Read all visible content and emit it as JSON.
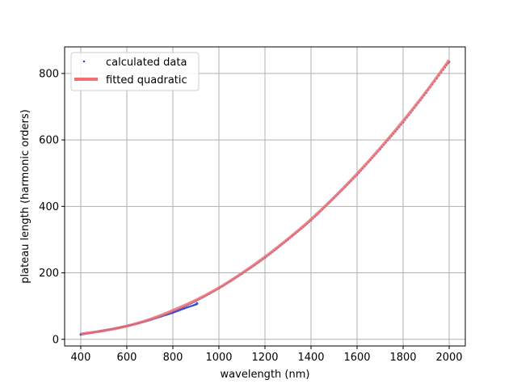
{
  "chart_data": {
    "type": "line",
    "title": "",
    "xlabel": "wavelength (nm)",
    "ylabel": "plateau length (harmonic orders)",
    "xlim": [
      330,
      2070
    ],
    "ylim": [
      -20,
      880
    ],
    "xticks": [
      400,
      600,
      800,
      1000,
      1200,
      1400,
      1600,
      1800,
      2000
    ],
    "yticks": [
      0,
      200,
      400,
      600,
      800
    ],
    "grid": true,
    "legend_position": "top-left",
    "series": [
      {
        "name": "calculated data",
        "style": "dots",
        "color": "#3b4fd0",
        "segments": [
          {
            "x": [
              400,
              450,
              500,
              550,
              600,
              650,
              700,
              750,
              800,
              850,
              900,
              905
            ],
            "y": [
              14,
              20,
              27,
              33,
              40,
              48,
              58,
              69,
              80,
              93,
              105,
              108
            ]
          },
          {
            "x": [
              400,
              500,
              600,
              700,
              800,
              900,
              1000,
              1100,
              1200,
              1300,
              1400,
              1500,
              1600,
              1700,
              1800,
              1900,
              2000
            ],
            "y": [
              15,
              26,
              40,
              58,
              83,
              115,
              153,
              197,
              245,
              300,
              358,
              425,
              495,
              572,
              653,
              742,
              835
            ]
          }
        ]
      },
      {
        "name": "fitted quadratic",
        "style": "line",
        "color": "#f07070",
        "x": [
          400,
          500,
          600,
          700,
          800,
          900,
          1000,
          1100,
          1200,
          1300,
          1400,
          1500,
          1600,
          1700,
          1800,
          1900,
          2000
        ],
        "y": [
          16,
          26,
          40,
          60,
          87,
          118,
          155,
          199,
          248,
          302,
          361,
          427,
          498,
          575,
          657,
          745,
          840
        ]
      }
    ]
  }
}
